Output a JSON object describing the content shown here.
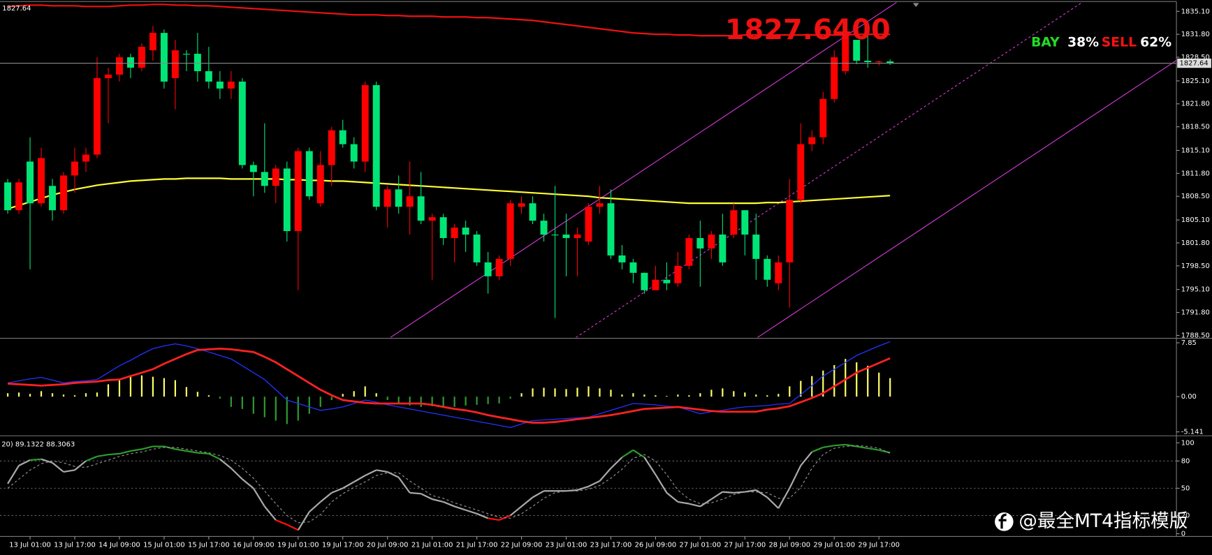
{
  "chart_data": [
    {
      "type": "candlestick",
      "price_display": "1827.6400",
      "current_price": 1827.64,
      "signal": {
        "buy_label": "BAY",
        "buy_pct": "38%",
        "sell_label": "SELL",
        "sell_pct": "62%"
      },
      "watermark": "@最全MT4指标模版",
      "up_color": "#ff0000",
      "down_color": "#00e676",
      "categories": [
        null,
        null,
        "13 Jul 01:00",
        null,
        null,
        null,
        "13 Jul 17:00",
        null,
        null,
        null,
        "14 Jul 09:00",
        null,
        null,
        null,
        "15 Jul 01:00",
        null,
        null,
        null,
        "15 Jul 17:00",
        null,
        null,
        null,
        "16 Jul 09:00",
        null,
        null,
        null,
        "19 Jul 01:00",
        null,
        null,
        null,
        "19 Jul 17:00",
        null,
        null,
        null,
        "20 Jul 09:00",
        null,
        null,
        null,
        "21 Jul 01:00",
        null,
        null,
        null,
        "21 Jul 17:00",
        null,
        null,
        null,
        "22 Jul 09:00",
        null,
        null,
        null,
        "23 Jul 01:00",
        null,
        null,
        null,
        "23 Jul 17:00",
        null,
        null,
        null,
        "26 Jul 09:00",
        null,
        null,
        null,
        "27 Jul 01:00",
        null,
        null,
        null,
        "27 Jul 17:00",
        null,
        null,
        null,
        "28 Jul 09:00",
        null,
        null,
        null,
        "29 Jul 01:00",
        null,
        null,
        null,
        "29 Jul 17:00",
        null
      ],
      "open": [
        1810.5,
        1806.5,
        1813.5,
        1807.5,
        1810.0,
        1806.5,
        1811.5,
        1813.5,
        1814.5,
        1825.5,
        1826.0,
        1828.5,
        1827.0,
        1829.5,
        1832.0,
        1825.5,
        1829.0,
        1829.0,
        1826.5,
        1825.0,
        1824.0,
        1825.0,
        1813.0,
        1812.0,
        1810.0,
        1812.5,
        1803.5,
        1815.0,
        1807.5,
        1813.0,
        1818.0,
        1816.0,
        1813.5,
        1824.5,
        1807.0,
        1809.5,
        1807.0,
        1808.5,
        1805.0,
        1805.5,
        1802.5,
        1804.0,
        1803.0,
        1799.0,
        1797.0,
        1799.5,
        1807.0,
        1807.5,
        1805.0,
        1803.0,
        1803.0,
        1802.5,
        1802.0,
        1807.0,
        1807.5,
        1800.0,
        1799.0,
        1797.5,
        1795.0,
        1796.5,
        1796.0,
        1798.5,
        1802.5,
        1801.0,
        1803.0,
        1803.0,
        1806.5,
        1803.0,
        1799.5,
        1796.0,
        1799.0,
        1808.0,
        1816.0,
        1817.0,
        1822.5,
        1826.5,
        1831.0,
        1828.0,
        1827.8,
        1827.9
      ],
      "high": [
        1811.0,
        1811.0,
        1817.0,
        1815.5,
        1811.0,
        1812.0,
        1815.5,
        1815.5,
        1828.5,
        1827.0,
        1829.0,
        1829.0,
        1830.5,
        1833.0,
        1832.5,
        1831.0,
        1829.5,
        1832.0,
        1830.0,
        1826.5,
        1826.5,
        1825.5,
        1813.5,
        1819.0,
        1813.0,
        1813.5,
        1815.5,
        1815.5,
        1815.0,
        1818.5,
        1819.5,
        1817.0,
        1825.0,
        1825.0,
        1810.0,
        1811.5,
        1813.5,
        1812.0,
        1806.0,
        1806.0,
        1804.5,
        1805.0,
        1803.5,
        1800.5,
        1800.0,
        1808.0,
        1808.5,
        1808.5,
        1806.0,
        1810.0,
        1806.0,
        1804.0,
        1807.5,
        1810.0,
        1809.5,
        1801.5,
        1799.5,
        1797.5,
        1798.5,
        1799.0,
        1800.5,
        1803.0,
        1805.0,
        1803.5,
        1806.0,
        1807.5,
        1806.5,
        1806.0,
        1800.0,
        1800.0,
        1811.0,
        1819.0,
        1818.0,
        1823.5,
        1829.5,
        1833.0,
        1831.0,
        1832.0,
        1828.0,
        1828.2
      ],
      "low": [
        1806.0,
        1806.0,
        1798.0,
        1807.0,
        1805.0,
        1806.0,
        1809.0,
        1812.0,
        1814.0,
        1819.0,
        1825.0,
        1825.5,
        1826.5,
        1828.0,
        1824.0,
        1821.0,
        1826.5,
        1825.0,
        1824.0,
        1822.5,
        1822.5,
        1812.5,
        1808.5,
        1809.0,
        1807.5,
        1802.0,
        1795.0,
        1808.0,
        1807.0,
        1810.0,
        1815.5,
        1812.5,
        1812.0,
        1806.5,
        1804.0,
        1806.0,
        1803.0,
        1804.5,
        1796.5,
        1801.5,
        1799.0,
        1800.5,
        1798.5,
        1794.5,
        1796.5,
        1798.5,
        1806.0,
        1804.5,
        1802.0,
        1791.0,
        1797.0,
        1797.0,
        1801.5,
        1806.0,
        1799.5,
        1798.0,
        1796.0,
        1794.5,
        1795.0,
        1795.0,
        1795.5,
        1798.0,
        1795.5,
        1799.5,
        1798.5,
        1802.5,
        1800.0,
        1796.5,
        1795.5,
        1795.0,
        1792.5,
        1807.5,
        1815.0,
        1816.0,
        1822.0,
        1826.0,
        1827.5,
        1827.0,
        1827.3,
        1827.4
      ],
      "close": [
        1806.5,
        1810.5,
        1807.5,
        1814.0,
        1806.5,
        1811.5,
        1813.5,
        1814.5,
        1825.5,
        1826.0,
        1828.5,
        1827.0,
        1830.0,
        1832.0,
        1825.0,
        1829.5,
        1829.0,
        1826.5,
        1825.0,
        1824.0,
        1825.0,
        1813.0,
        1812.0,
        1810.0,
        1812.5,
        1803.5,
        1815.0,
        1808.5,
        1813.0,
        1818.0,
        1816.0,
        1813.5,
        1824.5,
        1807.0,
        1809.5,
        1807.0,
        1808.5,
        1805.0,
        1805.5,
        1802.5,
        1804.0,
        1803.0,
        1799.0,
        1797.0,
        1799.5,
        1807.5,
        1807.5,
        1805.0,
        1803.0,
        1803.0,
        1802.5,
        1803.0,
        1807.0,
        1807.5,
        1800.0,
        1799.0,
        1797.5,
        1795.0,
        1796.5,
        1796.0,
        1798.5,
        1802.5,
        1801.0,
        1803.0,
        1799.0,
        1806.5,
        1803.0,
        1799.5,
        1796.5,
        1799.0,
        1808.0,
        1816.0,
        1817.0,
        1822.5,
        1828.5,
        1832.0,
        1828.0,
        1827.8,
        1827.9,
        1827.64
      ],
      "overlays": [
        {
          "color": "#ffff33",
          "values": [
            1806.7,
            1807.2,
            1807.7,
            1808.2,
            1808.7,
            1809.1,
            1809.5,
            1809.8,
            1810.1,
            1810.3,
            1810.5,
            1810.7,
            1810.8,
            1810.9,
            1811.0,
            1811.0,
            1811.1,
            1811.1,
            1811.1,
            1811.1,
            1811.0,
            1811.0,
            1811.0,
            1811.0,
            1811.0,
            1810.9,
            1810.9,
            1810.8,
            1810.8,
            1810.7,
            1810.7,
            1810.6,
            1810.5,
            1810.4,
            1810.3,
            1810.2,
            1810.1,
            1810.0,
            1809.9,
            1809.8,
            1809.7,
            1809.6,
            1809.5,
            1809.4,
            1809.3,
            1809.2,
            1809.1,
            1809.0,
            1808.9,
            1808.8,
            1808.7,
            1808.6,
            1808.5,
            1808.3,
            1808.2,
            1808.1,
            1808.0,
            1807.9,
            1807.8,
            1807.7,
            1807.6,
            1807.5,
            1807.5,
            1807.5,
            1807.5,
            1807.5,
            1807.5,
            1807.5,
            1807.6,
            1807.6,
            1807.7,
            1807.8,
            1807.9,
            1808.0,
            1808.1,
            1808.2,
            1808.3,
            1808.4,
            1808.5,
            1808.6
          ]
        },
        {
          "color": "#ee1111",
          "values": [
            1835.8,
            1835.9,
            1836.0,
            1836.0,
            1835.9,
            1835.9,
            1835.9,
            1835.8,
            1835.8,
            1835.8,
            1835.9,
            1836.0,
            1836.0,
            1836.1,
            1836.1,
            1836.0,
            1836.0,
            1835.9,
            1835.9,
            1835.8,
            1835.7,
            1835.6,
            1835.5,
            1835.4,
            1835.3,
            1835.2,
            1835.1,
            1835.0,
            1834.9,
            1834.8,
            1834.7,
            1834.6,
            1834.6,
            1834.6,
            1834.5,
            1834.5,
            1834.4,
            1834.4,
            1834.4,
            1834.3,
            1834.3,
            1834.3,
            1834.2,
            1834.2,
            1834.1,
            1834.0,
            1833.9,
            1833.8,
            1833.6,
            1833.4,
            1833.2,
            1833.0,
            1832.8,
            1832.6,
            1832.4,
            1832.2,
            1832.0,
            1831.9,
            1831.8,
            1831.8,
            1831.7,
            1831.7,
            1831.6,
            1831.6,
            1831.6,
            1831.6,
            1831.7,
            1831.7,
            1831.7,
            1831.7,
            1831.7,
            1831.7,
            1831.7,
            1831.7,
            1831.7,
            1831.7,
            1831.8,
            1831.8,
            1831.8,
            1831.8
          ]
        }
      ],
      "ylim": [
        1788.2,
        1836.4
      ],
      "yticks": [
        {
          "value": 1835.1,
          "label": "1835.10"
        },
        {
          "value": 1831.8,
          "label": "1831.80"
        },
        {
          "value": 1828.5,
          "label": "1828.50"
        },
        {
          "value": 1825.1,
          "label": "1825.10"
        },
        {
          "value": 1821.8,
          "label": "1821.80"
        },
        {
          "value": 1818.5,
          "label": "1818.50"
        },
        {
          "value": 1815.1,
          "label": "1815.10"
        },
        {
          "value": 1811.8,
          "label": "1811.80"
        },
        {
          "value": 1808.5,
          "label": "1808.50"
        },
        {
          "value": 1805.1,
          "label": "1805.10"
        },
        {
          "value": 1801.8,
          "label": "1801.80"
        },
        {
          "value": 1798.5,
          "label": "1798.50"
        },
        {
          "value": 1795.1,
          "label": "1795.10"
        },
        {
          "value": 1791.8,
          "label": "1791.80"
        },
        {
          "value": 1788.5,
          "label": "1788.50"
        }
      ]
    },
    {
      "type": "macd",
      "histogram": {
        "pos_color": "#ffff66",
        "neg_color": "#2e9b2e",
        "values": [
          0.5,
          0.6,
          0.4,
          0.8,
          0.5,
          0.3,
          0.2,
          0.5,
          0.6,
          1.8,
          2.5,
          3.0,
          3.1,
          2.9,
          2.7,
          2.4,
          1.4,
          0.7,
          0.2,
          -0.3,
          -1.5,
          -1.8,
          -2.5,
          -3.0,
          -3.5,
          -4.0,
          -3.5,
          -2.5,
          -1.5,
          -0.5,
          0.4,
          0.8,
          1.5,
          0.5,
          -0.5,
          -1.0,
          -1.3,
          -1.5,
          -1.4,
          -1.6,
          -1.5,
          -1.3,
          -1.2,
          -1.1,
          -1.0,
          -0.3,
          0.5,
          1.2,
          1.3,
          1.2,
          1.1,
          1.3,
          1.5,
          1.2,
          1.0,
          0.3,
          0.5,
          0.3,
          0.2,
          0.1,
          0.3,
          0.2,
          0.5,
          1.0,
          1.2,
          0.8,
          0.6,
          0.3,
          0.2,
          0.4,
          1.5,
          2.3,
          3.0,
          3.8,
          4.6,
          5.5,
          5.0,
          4.5,
          3.5,
          2.7
        ]
      },
      "series": [
        {
          "color": "#2233ff",
          "values": [
            2.0,
            2.3,
            2.6,
            2.8,
            2.4,
            2.0,
            2.2,
            2.3,
            2.5,
            3.5,
            4.5,
            5.3,
            6.2,
            7.0,
            7.4,
            7.7,
            7.4,
            7.0,
            6.5,
            6.0,
            5.5,
            4.5,
            3.5,
            2.5,
            1.0,
            -0.5,
            -1.0,
            -1.5,
            -2.0,
            -1.8,
            -1.5,
            -1.0,
            -0.5,
            -0.8,
            -1.2,
            -1.5,
            -1.8,
            -2.1,
            -2.4,
            -2.7,
            -3.0,
            -3.3,
            -3.6,
            -3.9,
            -4.2,
            -4.5,
            -4.0,
            -3.5,
            -3.4,
            -3.3,
            -3.2,
            -3.1,
            -3.0,
            -2.5,
            -2.0,
            -1.5,
            -1.0,
            -1.1,
            -1.2,
            -1.4,
            -1.5,
            -2.0,
            -2.5,
            -2.2,
            -2.0,
            -1.7,
            -1.5,
            -1.4,
            -1.3,
            -1.1,
            -1.0,
            0.3,
            1.6,
            3.0,
            4.0,
            5.0,
            6.0,
            6.7,
            7.4,
            8.0
          ]
        },
        {
          "color": "#ff2222",
          "values": [
            1.9,
            1.8,
            1.7,
            1.6,
            1.7,
            1.8,
            2.0,
            2.1,
            2.2,
            2.4,
            2.5,
            3.0,
            3.5,
            4.0,
            4.8,
            5.5,
            6.2,
            6.8,
            6.9,
            7.0,
            6.9,
            6.7,
            6.5,
            5.8,
            5.0,
            4.0,
            3.0,
            2.0,
            1.0,
            0.2,
            -0.5,
            -0.7,
            -0.9,
            -1.0,
            -1.0,
            -1.0,
            -1.0,
            -1.0,
            -1.2,
            -1.5,
            -1.8,
            -2.0,
            -2.3,
            -2.7,
            -3.0,
            -3.3,
            -3.6,
            -3.8,
            -3.8,
            -3.7,
            -3.5,
            -3.3,
            -3.1,
            -2.9,
            -2.7,
            -2.4,
            -2.1,
            -1.8,
            -1.7,
            -1.6,
            -1.5,
            -1.7,
            -1.9,
            -2.1,
            -2.2,
            -2.2,
            -2.2,
            -2.2,
            -1.9,
            -1.7,
            -1.4,
            -0.8,
            -0.2,
            0.5,
            1.5,
            2.5,
            3.5,
            4.2,
            4.9,
            5.6
          ]
        }
      ],
      "ylim": [
        -5.6,
        8.4
      ],
      "yticks": [
        7.85,
        {
          "value": 0,
          "label": "0.00"
        },
        -5.141
      ]
    },
    {
      "type": "stochastic",
      "label": "20) 89.1322 88.3063",
      "levels": [
        80,
        50,
        20
      ],
      "series": [
        {
          "color": "#aaaaaa",
          "high_color": "#2e9b2e",
          "low_color": "#ff1111",
          "values": [
            55,
            75,
            81,
            82,
            78,
            68,
            70,
            80,
            85,
            87,
            88,
            91,
            93,
            96,
            96,
            93,
            91,
            89,
            88,
            82,
            72,
            60,
            50,
            30,
            15,
            10,
            4,
            24,
            35,
            45,
            50,
            57,
            64,
            70,
            68,
            62,
            45,
            44,
            38,
            35,
            30,
            26,
            22,
            17,
            15,
            20,
            30,
            40,
            47,
            47,
            47,
            48,
            52,
            58,
            72,
            84,
            92,
            84,
            65,
            45,
            35,
            33,
            30,
            38,
            46,
            45,
            46,
            48,
            40,
            28,
            50,
            75,
            90,
            95,
            97,
            98,
            96,
            94,
            92,
            89.1322
          ]
        },
        {
          "color": "#999999",
          "dashed": true,
          "values": [
            50,
            60,
            70,
            77,
            80,
            78,
            74,
            73,
            77,
            81,
            85,
            88,
            90,
            93,
            95,
            95,
            93,
            91,
            89,
            86,
            81,
            72,
            61,
            47,
            33,
            20,
            12,
            13,
            21,
            35,
            44,
            51,
            57,
            64,
            67,
            67,
            58,
            50,
            42,
            39,
            34,
            30,
            26,
            22,
            18,
            17,
            22,
            30,
            39,
            45,
            47,
            47,
            49,
            53,
            61,
            71,
            83,
            87,
            80,
            65,
            48,
            38,
            33,
            34,
            38,
            43,
            46,
            46,
            45,
            39,
            39,
            51,
            72,
            87,
            94,
            96,
            97,
            96,
            94,
            88.3063
          ]
        }
      ],
      "ylim": [
        -3,
        106
      ],
      "yticks": [
        100,
        80,
        50,
        20,
        0
      ]
    }
  ]
}
